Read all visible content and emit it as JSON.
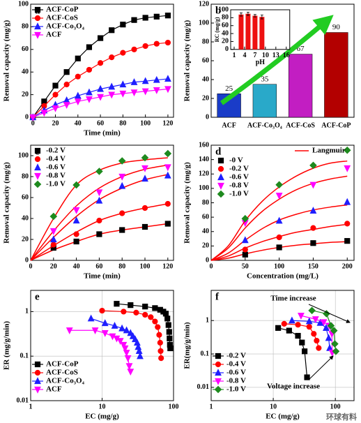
{
  "chart_data": [
    {
      "type": "line",
      "label": "a",
      "xlabel": "Time (min)",
      "ylabel": "Removal capacity (mg/g)",
      "x": [
        0,
        10,
        20,
        30,
        40,
        50,
        60,
        70,
        80,
        90,
        100,
        110,
        120
      ],
      "xlim": [
        -2,
        125
      ],
      "xticks": [
        0,
        20,
        40,
        60,
        80,
        100,
        120
      ],
      "ylim": [
        0,
        100
      ],
      "yticks": [
        0,
        20,
        40,
        60,
        80,
        100
      ],
      "legend": "upper left",
      "series": [
        {
          "name": "ACF-CoP",
          "color": "#000000",
          "marker": "square",
          "values": [
            0,
            14,
            28,
            40,
            52,
            62,
            70,
            77,
            82,
            86,
            88,
            89,
            90
          ]
        },
        {
          "name": "ACF-CoS",
          "color": "#ff0000",
          "marker": "circle",
          "values": [
            0,
            10,
            20,
            29,
            36,
            42,
            48,
            53,
            57,
            60,
            63,
            65,
            66
          ]
        },
        {
          "name": "ACF-Co₃O₄",
          "color": "#1f1fff",
          "marker": "triangle-up",
          "values": [
            0,
            6,
            11,
            15,
            19,
            22,
            25,
            27,
            29,
            31,
            32,
            33,
            34
          ]
        },
        {
          "name": "ACF",
          "color": "#ff00ff",
          "marker": "triangle-down",
          "values": [
            0,
            4,
            8,
            11,
            14,
            16,
            18,
            20,
            21,
            22,
            23,
            24,
            25
          ]
        }
      ]
    },
    {
      "type": "bar",
      "label": "b",
      "ylabel": "Removal capacity (mg/g)",
      "categories": [
        "ACF",
        "ACF-Co₃O₄",
        "ACF-CoS",
        "ACF-CoP"
      ],
      "values": [
        25,
        35,
        67,
        90
      ],
      "colors": [
        "#1a3cc8",
        "#29a9c9",
        "#c21ec2",
        "#b30000"
      ],
      "ylim": [
        0,
        120
      ],
      "yticks": [
        0,
        20,
        40,
        60,
        80,
        100,
        120
      ],
      "inset": {
        "xlabel": "pH",
        "ylabel": "RC (mg/g)",
        "x": [
          3,
          5,
          7,
          9
        ],
        "values": [
          88,
          90,
          85,
          82
        ],
        "errors": [
          4,
          4,
          3,
          5
        ],
        "color": "#ee1111",
        "xlim": [
          0,
          17
        ],
        "xticks": [
          1,
          4,
          7,
          10,
          13,
          16
        ],
        "ylim": [
          0,
          100
        ],
        "yticks": [
          0,
          20,
          40,
          60,
          80,
          100
        ]
      }
    },
    {
      "type": "scatter",
      "label": "c",
      "xlabel": "Time (min)",
      "ylabel": "Removal capacity (mg/g)",
      "x": [
        20,
        40,
        60,
        80,
        100,
        120
      ],
      "fit_x": [
        0,
        20,
        40,
        60,
        80,
        100,
        120
      ],
      "xlim": [
        0,
        125
      ],
      "xticks": [
        0,
        20,
        40,
        60,
        80,
        100,
        120
      ],
      "ylim": [
        0,
        110
      ],
      "yticks": [
        0,
        20,
        40,
        60,
        80,
        100
      ],
      "legend": "upper left",
      "fit_color": "#ff0000",
      "series": [
        {
          "name": "-0.2 V",
          "color": "#000000",
          "marker": "square",
          "values": [
            12,
            18,
            25,
            29,
            32,
            35
          ],
          "fit": [
            0,
            10,
            18,
            25,
            29,
            32,
            35
          ]
        },
        {
          "name": "-0.4 V",
          "color": "#ff0000",
          "marker": "circle",
          "values": [
            15,
            25,
            38,
            45,
            50,
            54
          ],
          "fit": [
            0,
            14,
            27,
            38,
            45,
            50,
            54
          ]
        },
        {
          "name": "-0.6 V",
          "color": "#1f1fff",
          "marker": "triangle-up",
          "values": [
            20,
            38,
            57,
            71,
            78,
            81
          ],
          "fit": [
            0,
            22,
            42,
            58,
            69,
            77,
            82
          ]
        },
        {
          "name": "-0.8 V",
          "color": "#ff00ff",
          "marker": "triangle-down",
          "values": [
            28,
            48,
            65,
            80,
            88,
            89
          ],
          "fit": [
            0,
            28,
            52,
            69,
            80,
            87,
            91
          ]
        },
        {
          "name": "-1.0 V",
          "color": "#1e8a1e",
          "marker": "diamond",
          "values": [
            42,
            72,
            85,
            95,
            98,
            102
          ],
          "fit": [
            0,
            40,
            72,
            86,
            93,
            96,
            98
          ]
        }
      ]
    },
    {
      "type": "scatter",
      "label": "d",
      "xlabel": "Concentration (mg/L)",
      "ylabel": "Removal capacity (mg/g)",
      "x": [
        50,
        100,
        150,
        200
      ],
      "fit_x": [
        0,
        25,
        50,
        75,
        100,
        125,
        150,
        175,
        200
      ],
      "fit_label": "Langmuir",
      "xlim": [
        0,
        210
      ],
      "xticks": [
        0,
        50,
        100,
        150,
        200
      ],
      "ylim": [
        0,
        160
      ],
      "yticks": [
        0,
        20,
        40,
        60,
        80,
        100,
        120,
        140,
        160
      ],
      "legend": "upper left",
      "fit_color": "#ff0000",
      "series": [
        {
          "name": "-0  V",
          "color": "#000000",
          "marker": "square",
          "values": [
            8,
            18,
            24,
            27
          ],
          "fit": [
            0,
            3,
            9,
            14,
            18,
            21,
            23,
            25,
            26
          ]
        },
        {
          "name": "-0.2 V",
          "color": "#ff0000",
          "marker": "circle",
          "values": [
            15,
            32,
            45,
            51
          ],
          "fit": [
            0,
            6,
            17,
            26,
            33,
            39,
            43,
            47,
            50
          ]
        },
        {
          "name": "-0.6 V",
          "color": "#1f1fff",
          "marker": "triangle-up",
          "values": [
            28,
            55,
            69,
            81
          ],
          "fit": [
            0,
            10,
            28,
            44,
            56,
            64,
            70,
            74,
            77
          ]
        },
        {
          "name": "-0.8 V",
          "color": "#ff00ff",
          "marker": "triangle-down",
          "values": [
            52,
            90,
            105,
            128
          ],
          "fit": [
            0,
            17,
            45,
            68,
            85,
            98,
            107,
            113,
            117
          ]
        },
        {
          "name": "-1.0 V",
          "color": "#1e8a1e",
          "marker": "diamond",
          "values": [
            58,
            105,
            132,
            153
          ],
          "fit": [
            0,
            20,
            55,
            82,
            102,
            117,
            128,
            135,
            138
          ]
        }
      ]
    },
    {
      "type": "line",
      "label": "e",
      "xlabel": "EC (mg/g)",
      "ylabel": "ER (mg/g/min)",
      "log_x": true,
      "log_y": true,
      "grid": true,
      "xlim": [
        1,
        100
      ],
      "xticks": [
        1,
        10,
        100
      ],
      "ylim": [
        0.01,
        3
      ],
      "yticks": [
        0.01,
        0.1,
        1
      ],
      "legend": "lower left",
      "series": [
        {
          "name": "ACF-CoP",
          "color": "#000000",
          "marker": "square",
          "x": [
            16,
            25,
            40,
            55,
            65,
            72,
            78,
            82,
            85,
            87,
            88,
            89,
            90
          ],
          "values": [
            1.5,
            1.4,
            1.3,
            1.2,
            1.1,
            1.0,
            0.9,
            0.7,
            0.5,
            0.35,
            0.25,
            0.18,
            0.15
          ]
        },
        {
          "name": "ACF-CoS",
          "color": "#ff0000",
          "marker": "circle",
          "x": [
            10,
            20,
            30,
            40,
            48,
            55,
            60,
            63,
            65,
            66,
            67
          ],
          "values": [
            1.05,
            1.0,
            0.95,
            0.85,
            0.75,
            0.6,
            0.45,
            0.3,
            0.2,
            0.13,
            0.09
          ]
        },
        {
          "name": "ACF-Co₃O₄",
          "color": "#1f1fff",
          "marker": "triangle-up",
          "x": [
            7,
            11,
            15,
            19,
            22,
            25,
            27,
            29,
            31,
            32,
            33,
            34
          ],
          "values": [
            0.7,
            0.55,
            0.48,
            0.42,
            0.38,
            0.33,
            0.28,
            0.24,
            0.2,
            0.16,
            0.13,
            0.1
          ]
        },
        {
          "name": "ACF",
          "color": "#ff00ff",
          "marker": "triangle-down",
          "x": [
            3.5,
            8,
            11,
            14,
            16,
            18,
            20,
            21,
            22,
            23,
            24,
            25
          ],
          "values": [
            0.38,
            0.38,
            0.33,
            0.28,
            0.25,
            0.22,
            0.18,
            0.15,
            0.12,
            0.09,
            0.06,
            0.045
          ]
        }
      ]
    },
    {
      "type": "line",
      "label": "f",
      "xlabel": "EC (mg/g)",
      "ylabel": "ER(mg/g/min)",
      "log_x": true,
      "log_y": true,
      "grid": true,
      "xlim": [
        1,
        200
      ],
      "xticks": [
        1,
        10,
        100
      ],
      "ylim": [
        0.004,
        8
      ],
      "yticks": [
        0.01,
        0.1,
        1
      ],
      "legend": "lower left",
      "annotations": [
        "Time increase",
        "Voltage increase"
      ],
      "watermark": "环球有料",
      "series": [
        {
          "name": "-0.2 V",
          "color": "#000000",
          "marker": "square",
          "x": [
            12,
            18,
            25,
            29,
            32,
            35
          ],
          "values": [
            0.6,
            0.5,
            0.35,
            0.22,
            0.12,
            0.02
          ]
        },
        {
          "name": "-0.4 V",
          "color": "#ff0000",
          "marker": "circle",
          "x": [
            15,
            25,
            38,
            45,
            50,
            54
          ],
          "values": [
            0.8,
            0.75,
            0.65,
            0.4,
            0.25,
            0.15
          ]
        },
        {
          "name": "-0.6 V",
          "color": "#1f1fff",
          "marker": "triangle-up",
          "x": [
            20,
            38,
            57,
            71,
            78,
            81
          ],
          "values": [
            1.0,
            0.95,
            0.85,
            0.6,
            0.3,
            0.15
          ]
        },
        {
          "name": "-0.8 V",
          "color": "#ff00ff",
          "marker": "triangle-down",
          "x": [
            28,
            48,
            65,
            80,
            88,
            89
          ],
          "values": [
            1.4,
            1.1,
            0.9,
            0.7,
            0.4,
            0.11
          ]
        },
        {
          "name": "-1.0 V",
          "color": "#1e8a1e",
          "marker": "diamond",
          "x": [
            42,
            72,
            85,
            95,
            98,
            102
          ],
          "values": [
            2.0,
            1.6,
            0.7,
            0.5,
            0.2,
            0.12
          ]
        }
      ]
    }
  ]
}
